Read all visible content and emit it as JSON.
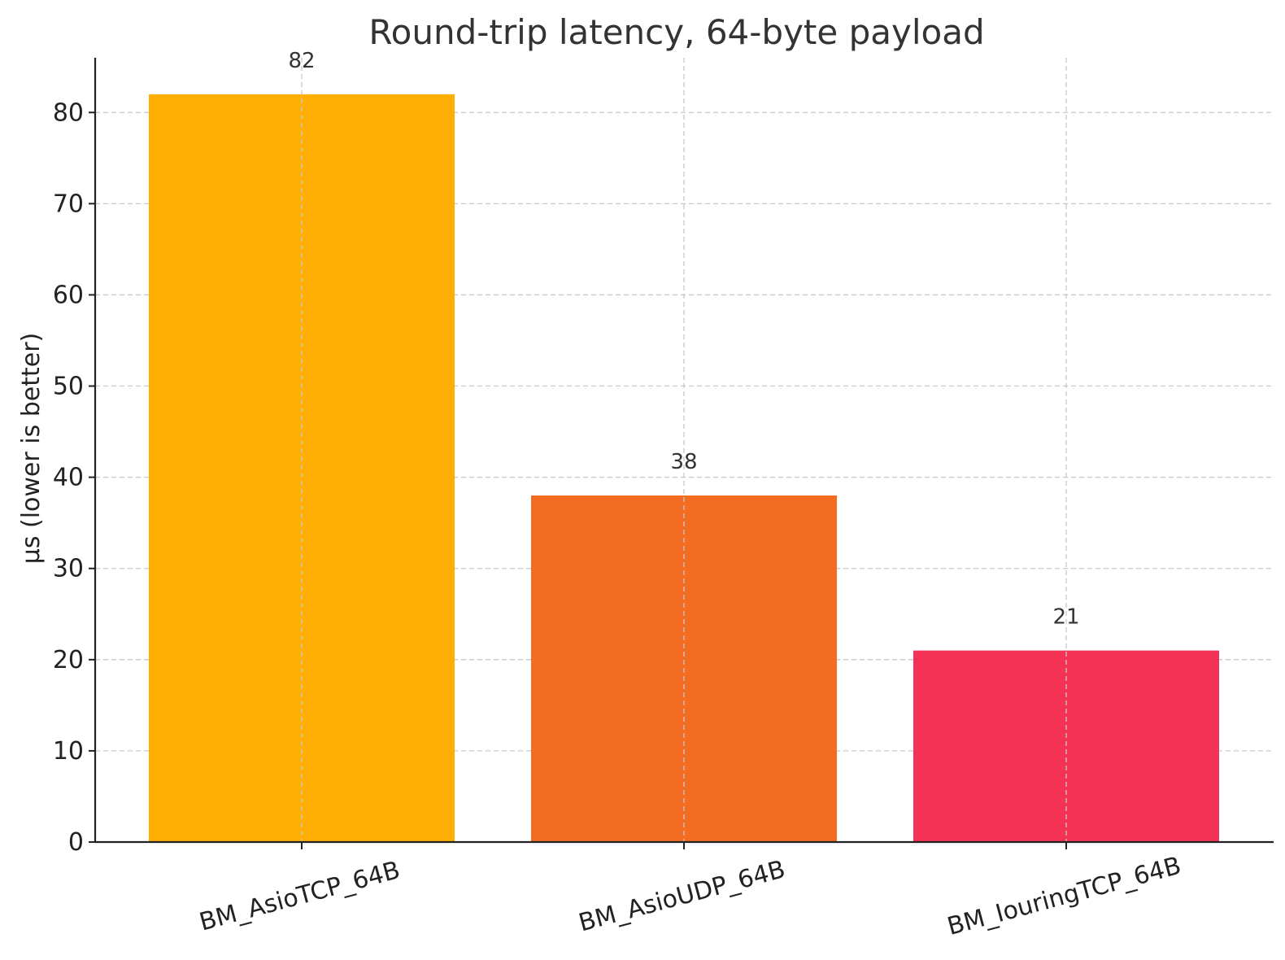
{
  "chart_data": {
    "type": "bar",
    "title": "Round-trip latency, 64-byte payload",
    "xlabel": "",
    "ylabel": "µs (lower is better)",
    "categories": [
      "BM_AsioTCP_64B",
      "BM_AsioUDP_64B",
      "BM_IouringTCP_64B"
    ],
    "values": [
      82,
      38,
      21
    ],
    "data_labels": [
      "82",
      "38",
      "21"
    ],
    "colors": [
      "#FFAE03",
      "#F46B22",
      "#F43256"
    ],
    "ylim": [
      0,
      86
    ],
    "yticks": [
      0,
      10,
      20,
      30,
      40,
      50,
      60,
      70,
      80
    ],
    "grid": true,
    "legend": "none"
  }
}
